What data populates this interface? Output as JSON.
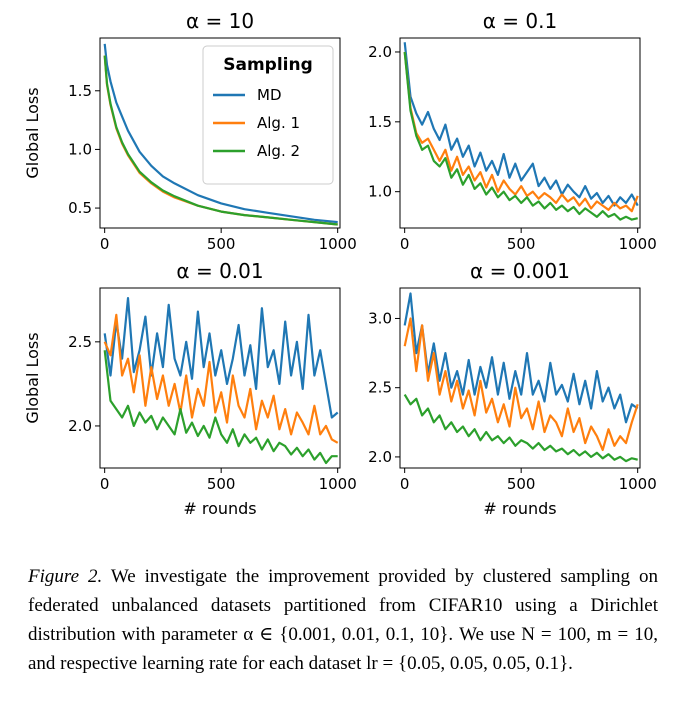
{
  "chart_data": [
    {
      "type": "line",
      "title": "α = 10",
      "ylabel": "Global Loss",
      "xlabel": "",
      "xlim": [
        -20,
        1010
      ],
      "ylim": [
        0.33,
        1.95
      ],
      "xticks": [
        0,
        500,
        1000
      ],
      "yticks": [
        0.5,
        1.0,
        1.5
      ],
      "ytick_labels": [
        "0.5",
        "1.0",
        "1.5"
      ],
      "legend": {
        "title": "Sampling",
        "position": "top-right"
      },
      "series": [
        {
          "name": "MD",
          "color": "#1f77b4",
          "x": [
            0,
            10,
            25,
            50,
            75,
            100,
            150,
            200,
            250,
            300,
            400,
            500,
            600,
            700,
            800,
            900,
            1000
          ],
          "y": [
            1.9,
            1.72,
            1.58,
            1.4,
            1.28,
            1.16,
            0.98,
            0.86,
            0.77,
            0.71,
            0.61,
            0.54,
            0.49,
            0.46,
            0.43,
            0.4,
            0.38
          ]
        },
        {
          "name": "Alg. 1",
          "color": "#ff7f0e",
          "x": [
            0,
            10,
            25,
            50,
            75,
            100,
            150,
            200,
            250,
            300,
            400,
            500,
            600,
            700,
            800,
            900,
            1000
          ],
          "y": [
            1.8,
            1.55,
            1.38,
            1.18,
            1.05,
            0.95,
            0.8,
            0.71,
            0.64,
            0.59,
            0.52,
            0.47,
            0.44,
            0.42,
            0.4,
            0.38,
            0.36
          ]
        },
        {
          "name": "Alg. 2",
          "color": "#2ca02c",
          "x": [
            0,
            10,
            25,
            50,
            75,
            100,
            150,
            200,
            250,
            300,
            400,
            500,
            600,
            700,
            800,
            900,
            1000
          ],
          "y": [
            1.8,
            1.56,
            1.39,
            1.19,
            1.06,
            0.96,
            0.81,
            0.72,
            0.65,
            0.6,
            0.52,
            0.47,
            0.44,
            0.42,
            0.4,
            0.38,
            0.36
          ]
        }
      ]
    },
    {
      "type": "line",
      "title": "α = 0.1",
      "ylabel": "",
      "xlabel": "",
      "xlim": [
        -20,
        1010
      ],
      "ylim": [
        0.74,
        2.1
      ],
      "xticks": [
        0,
        500,
        1000
      ],
      "yticks": [
        1.0,
        1.5,
        2.0
      ],
      "ytick_labels": [
        "1.0",
        "1.5",
        "2.0"
      ],
      "series": [
        {
          "name": "MD",
          "color": "#1f77b4",
          "x": [
            0,
            25,
            50,
            75,
            100,
            125,
            150,
            175,
            200,
            225,
            250,
            275,
            300,
            325,
            350,
            375,
            400,
            425,
            450,
            475,
            500,
            525,
            550,
            575,
            600,
            625,
            650,
            675,
            700,
            725,
            750,
            775,
            800,
            825,
            850,
            875,
            900,
            925,
            950,
            975,
            1000
          ],
          "y": [
            2.07,
            1.68,
            1.56,
            1.48,
            1.57,
            1.45,
            1.37,
            1.48,
            1.3,
            1.38,
            1.25,
            1.33,
            1.18,
            1.28,
            1.15,
            1.22,
            1.12,
            1.27,
            1.1,
            1.2,
            1.08,
            1.14,
            1.2,
            1.04,
            1.1,
            1.02,
            1.08,
            0.98,
            1.05,
            1.0,
            0.96,
            1.04,
            0.95,
            0.99,
            0.92,
            0.97,
            0.9,
            0.96,
            0.92,
            0.98,
            0.9
          ]
        },
        {
          "name": "Alg. 1",
          "color": "#ff7f0e",
          "x": [
            0,
            25,
            50,
            75,
            100,
            125,
            150,
            175,
            200,
            225,
            250,
            275,
            300,
            325,
            350,
            375,
            400,
            425,
            450,
            475,
            500,
            525,
            550,
            575,
            600,
            625,
            650,
            675,
            700,
            725,
            750,
            775,
            800,
            825,
            850,
            875,
            900,
            925,
            950,
            975,
            1000
          ],
          "y": [
            2.0,
            1.6,
            1.42,
            1.35,
            1.38,
            1.3,
            1.22,
            1.3,
            1.15,
            1.25,
            1.12,
            1.18,
            1.08,
            1.14,
            1.03,
            1.12,
            1.0,
            1.08,
            1.02,
            0.98,
            1.04,
            0.97,
            1.0,
            0.95,
            0.99,
            0.96,
            0.92,
            0.98,
            0.93,
            0.96,
            0.9,
            0.95,
            0.88,
            0.93,
            0.9,
            0.87,
            0.92,
            0.88,
            0.9,
            0.86,
            0.97
          ]
        },
        {
          "name": "Alg. 2",
          "color": "#2ca02c",
          "x": [
            0,
            25,
            50,
            75,
            100,
            125,
            150,
            175,
            200,
            225,
            250,
            275,
            300,
            325,
            350,
            375,
            400,
            425,
            450,
            475,
            500,
            525,
            550,
            575,
            600,
            625,
            650,
            675,
            700,
            725,
            750,
            775,
            800,
            825,
            850,
            875,
            900,
            925,
            950,
            975,
            1000
          ],
          "y": [
            2.0,
            1.58,
            1.4,
            1.3,
            1.33,
            1.22,
            1.18,
            1.24,
            1.1,
            1.16,
            1.05,
            1.12,
            1.02,
            1.06,
            0.98,
            1.03,
            0.96,
            1.0,
            0.94,
            0.97,
            0.92,
            0.96,
            0.9,
            0.93,
            0.88,
            0.92,
            0.87,
            0.9,
            0.86,
            0.89,
            0.84,
            0.88,
            0.85,
            0.82,
            0.86,
            0.82,
            0.84,
            0.8,
            0.82,
            0.8,
            0.81
          ]
        }
      ]
    },
    {
      "type": "line",
      "title": "α = 0.01",
      "ylabel": "Global Loss",
      "xlabel": "# rounds",
      "xlim": [
        -20,
        1010
      ],
      "ylim": [
        1.75,
        2.82
      ],
      "xticks": [
        0,
        500,
        1000
      ],
      "yticks": [
        2.0,
        2.5
      ],
      "ytick_labels": [
        "2.0",
        "2.5"
      ],
      "series": [
        {
          "name": "MD",
          "color": "#1f77b4",
          "x": [
            0,
            25,
            50,
            75,
            100,
            125,
            150,
            175,
            200,
            225,
            250,
            275,
            300,
            325,
            350,
            375,
            400,
            425,
            450,
            475,
            500,
            525,
            550,
            575,
            600,
            625,
            650,
            675,
            700,
            725,
            750,
            775,
            800,
            825,
            850,
            875,
            900,
            925,
            950,
            975,
            1000
          ],
          "y": [
            2.55,
            2.3,
            2.62,
            2.4,
            2.76,
            2.32,
            2.45,
            2.65,
            2.3,
            2.55,
            2.35,
            2.72,
            2.4,
            2.3,
            2.5,
            2.28,
            2.68,
            2.35,
            2.55,
            2.3,
            2.45,
            2.25,
            2.4,
            2.6,
            2.3,
            2.48,
            2.22,
            2.7,
            2.35,
            2.45,
            2.25,
            2.62,
            2.3,
            2.5,
            2.22,
            2.66,
            2.3,
            2.45,
            2.25,
            2.05,
            2.08
          ]
        },
        {
          "name": "Alg. 1",
          "color": "#ff7f0e",
          "x": [
            0,
            25,
            50,
            75,
            100,
            125,
            150,
            175,
            200,
            225,
            250,
            275,
            300,
            325,
            350,
            375,
            400,
            425,
            450,
            475,
            500,
            525,
            550,
            575,
            600,
            625,
            650,
            675,
            700,
            725,
            750,
            775,
            800,
            825,
            850,
            875,
            900,
            925,
            950,
            975,
            1000
          ],
          "y": [
            2.5,
            2.42,
            2.66,
            2.3,
            2.4,
            2.2,
            2.42,
            2.12,
            2.35,
            2.16,
            2.3,
            2.12,
            2.25,
            2.08,
            2.3,
            2.05,
            2.22,
            2.12,
            2.38,
            2.08,
            2.2,
            2.02,
            2.3,
            2.12,
            2.05,
            2.22,
            1.98,
            2.15,
            2.05,
            2.18,
            1.98,
            2.1,
            1.95,
            2.08,
            2.02,
            1.95,
            2.12,
            1.95,
            2.0,
            1.92,
            1.9
          ]
        },
        {
          "name": "Alg. 2",
          "color": "#2ca02c",
          "x": [
            0,
            25,
            50,
            75,
            100,
            125,
            150,
            175,
            200,
            225,
            250,
            275,
            300,
            325,
            350,
            375,
            400,
            425,
            450,
            475,
            500,
            525,
            550,
            575,
            600,
            625,
            650,
            675,
            700,
            725,
            750,
            775,
            800,
            825,
            850,
            875,
            900,
            925,
            950,
            975,
            1000
          ],
          "y": [
            2.45,
            2.15,
            2.1,
            2.05,
            2.12,
            2.0,
            2.08,
            2.02,
            2.06,
            1.98,
            2.05,
            2.0,
            1.95,
            2.1,
            1.96,
            2.02,
            1.94,
            2.0,
            1.93,
            2.05,
            1.95,
            1.9,
            1.98,
            1.88,
            1.95,
            1.9,
            1.93,
            1.86,
            1.92,
            1.85,
            1.9,
            1.88,
            1.83,
            1.87,
            1.82,
            1.86,
            1.8,
            1.84,
            1.78,
            1.82,
            1.82
          ]
        }
      ]
    },
    {
      "type": "line",
      "title": "α = 0.001",
      "ylabel": "",
      "xlabel": "# rounds",
      "xlim": [
        -20,
        1010
      ],
      "ylim": [
        1.92,
        3.22
      ],
      "xticks": [
        0,
        500,
        1000
      ],
      "yticks": [
        2.0,
        2.5,
        3.0
      ],
      "ytick_labels": [
        "2.0",
        "2.5",
        "3.0"
      ],
      "series": [
        {
          "name": "MD",
          "color": "#1f77b4",
          "x": [
            0,
            25,
            50,
            75,
            100,
            125,
            150,
            175,
            200,
            225,
            250,
            275,
            300,
            325,
            350,
            375,
            400,
            425,
            450,
            475,
            500,
            525,
            550,
            575,
            600,
            625,
            650,
            675,
            700,
            725,
            750,
            775,
            800,
            825,
            850,
            875,
            900,
            925,
            950,
            975,
            1000
          ],
          "y": [
            2.95,
            3.18,
            2.75,
            2.95,
            2.6,
            2.82,
            2.55,
            2.75,
            2.5,
            2.62,
            2.45,
            2.7,
            2.45,
            2.65,
            2.5,
            2.72,
            2.45,
            2.68,
            2.42,
            2.62,
            2.45,
            2.75,
            2.45,
            2.55,
            2.4,
            2.68,
            2.45,
            2.52,
            2.4,
            2.6,
            2.38,
            2.55,
            2.35,
            2.62,
            2.4,
            2.5,
            2.35,
            2.45,
            2.25,
            2.38,
            2.35
          ]
        },
        {
          "name": "Alg. 1",
          "color": "#ff7f0e",
          "x": [
            0,
            25,
            50,
            75,
            100,
            125,
            150,
            175,
            200,
            225,
            250,
            275,
            300,
            325,
            350,
            375,
            400,
            425,
            450,
            475,
            500,
            525,
            550,
            575,
            600,
            625,
            650,
            675,
            700,
            725,
            750,
            775,
            800,
            825,
            850,
            875,
            900,
            925,
            950,
            975,
            1000
          ],
          "y": [
            2.8,
            3.0,
            2.62,
            2.95,
            2.55,
            2.75,
            2.45,
            2.62,
            2.4,
            2.55,
            2.35,
            2.48,
            2.3,
            2.55,
            2.32,
            2.42,
            2.25,
            2.38,
            2.22,
            2.5,
            2.28,
            2.35,
            2.2,
            2.4,
            2.18,
            2.3,
            2.25,
            2.15,
            2.35,
            2.18,
            2.28,
            2.1,
            2.22,
            2.15,
            2.05,
            2.2,
            2.08,
            2.15,
            2.1,
            2.25,
            2.38
          ]
        },
        {
          "name": "Alg. 2",
          "color": "#2ca02c",
          "x": [
            0,
            25,
            50,
            75,
            100,
            125,
            150,
            175,
            200,
            225,
            250,
            275,
            300,
            325,
            350,
            375,
            400,
            425,
            450,
            475,
            500,
            525,
            550,
            575,
            600,
            625,
            650,
            675,
            700,
            725,
            750,
            775,
            800,
            825,
            850,
            875,
            900,
            925,
            950,
            975,
            1000
          ],
          "y": [
            2.45,
            2.38,
            2.42,
            2.3,
            2.35,
            2.25,
            2.3,
            2.2,
            2.25,
            2.18,
            2.22,
            2.15,
            2.2,
            2.12,
            2.18,
            2.12,
            2.15,
            2.1,
            2.14,
            2.08,
            2.12,
            2.1,
            2.06,
            2.1,
            2.05,
            2.08,
            2.04,
            2.06,
            2.02,
            2.05,
            2.01,
            2.04,
            2.0,
            2.03,
            1.99,
            2.02,
            1.98,
            2.0,
            1.97,
            1.99,
            1.98
          ]
        }
      ]
    }
  ],
  "caption": {
    "label": "Figure 2.",
    "text": "We investigate the improvement provided by clustered sampling on federated unbalanced datasets partitioned from CIFAR10 using a Dirichlet distribution with parameter α ∈ {0.001, 0.01, 0.1, 10}. We use N = 100, m = 10, and respective learning rate for each dataset lr = {0.05, 0.05, 0.05, 0.1}."
  }
}
